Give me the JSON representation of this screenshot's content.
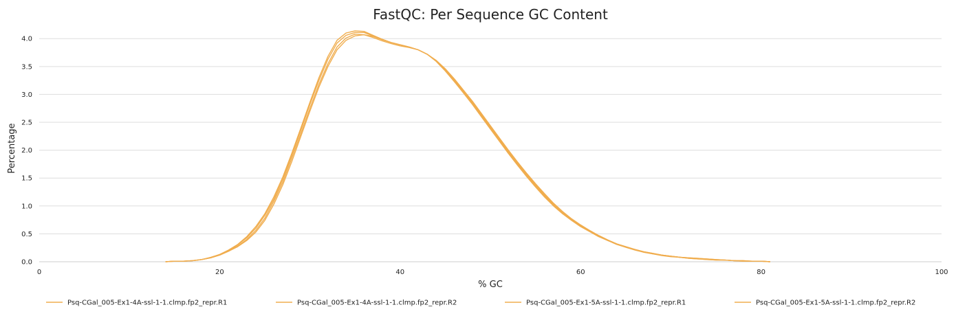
{
  "chart_data": {
    "type": "line",
    "title": "FastQC: Per Sequence GC Content",
    "xlabel": "% GC",
    "ylabel": "Percentage",
    "xlim": [
      0,
      100
    ],
    "ylim": [
      0,
      4.2
    ],
    "xticks": [
      "0",
      "20",
      "40",
      "60",
      "80",
      "100"
    ],
    "yticks": [
      "0.0",
      "0.5",
      "1.0",
      "1.5",
      "2.0",
      "2.5",
      "3.0",
      "3.5",
      "4.0"
    ],
    "grid": "horizontal",
    "legend_position": "bottom",
    "x": [
      14,
      15,
      16,
      17,
      18,
      19,
      20,
      21,
      22,
      23,
      24,
      25,
      26,
      27,
      28,
      29,
      30,
      31,
      32,
      33,
      34,
      35,
      36,
      37,
      38,
      39,
      40,
      41,
      42,
      43,
      44,
      45,
      46,
      47,
      48,
      49,
      50,
      51,
      52,
      53,
      54,
      55,
      56,
      57,
      58,
      59,
      60,
      61,
      62,
      63,
      64,
      65,
      66,
      67,
      68,
      69,
      70,
      71,
      72,
      73,
      74,
      75,
      76,
      77,
      78,
      79,
      80,
      81
    ],
    "series": [
      {
        "name": "Psq-CGal_005-Ex1-4A-ssl-1-1.clmp.fp2_repr.R1",
        "color": "#f0ad4e",
        "values": [
          0.0,
          0.01,
          0.01,
          0.02,
          0.04,
          0.07,
          0.12,
          0.19,
          0.28,
          0.4,
          0.56,
          0.78,
          1.08,
          1.43,
          1.86,
          2.3,
          2.75,
          3.18,
          3.55,
          3.85,
          4.01,
          4.08,
          4.07,
          4.02,
          3.96,
          3.91,
          3.87,
          3.84,
          3.8,
          3.72,
          3.6,
          3.44,
          3.26,
          3.06,
          2.86,
          2.64,
          2.42,
          2.2,
          1.98,
          1.77,
          1.57,
          1.38,
          1.2,
          1.03,
          0.88,
          0.76,
          0.65,
          0.56,
          0.47,
          0.39,
          0.32,
          0.27,
          0.22,
          0.18,
          0.15,
          0.12,
          0.1,
          0.08,
          0.07,
          0.06,
          0.05,
          0.04,
          0.03,
          0.02,
          0.02,
          0.01,
          0.01,
          0.0
        ]
      },
      {
        "name": "Psq-CGal_005-Ex1-4A-ssl-1-1.clmp.fp2_repr.R2",
        "color": "#f0ad4e",
        "values": [
          0.0,
          0.01,
          0.01,
          0.02,
          0.04,
          0.07,
          0.12,
          0.19,
          0.27,
          0.38,
          0.53,
          0.74,
          1.03,
          1.38,
          1.8,
          2.25,
          2.7,
          3.13,
          3.5,
          3.8,
          3.97,
          4.05,
          4.07,
          4.04,
          3.98,
          3.93,
          3.89,
          3.85,
          3.8,
          3.72,
          3.61,
          3.46,
          3.28,
          3.08,
          2.88,
          2.66,
          2.44,
          2.22,
          2.0,
          1.79,
          1.59,
          1.4,
          1.22,
          1.05,
          0.9,
          0.77,
          0.66,
          0.56,
          0.47,
          0.39,
          0.32,
          0.27,
          0.22,
          0.18,
          0.15,
          0.12,
          0.1,
          0.08,
          0.07,
          0.06,
          0.05,
          0.04,
          0.03,
          0.02,
          0.02,
          0.01,
          0.01,
          0.0
        ]
      },
      {
        "name": "Psq-CGal_005-Ex1-5A-ssl-1-1.clmp.fp2_repr.R1",
        "color": "#f0ad4e",
        "values": [
          0.0,
          0.01,
          0.01,
          0.02,
          0.04,
          0.08,
          0.13,
          0.21,
          0.31,
          0.45,
          0.63,
          0.86,
          1.16,
          1.52,
          1.95,
          2.4,
          2.86,
          3.3,
          3.68,
          3.97,
          4.1,
          4.14,
          4.13,
          4.06,
          3.99,
          3.93,
          3.89,
          3.85,
          3.8,
          3.72,
          3.59,
          3.42,
          3.23,
          3.03,
          2.82,
          2.6,
          2.38,
          2.16,
          1.94,
          1.73,
          1.53,
          1.34,
          1.16,
          1.0,
          0.86,
          0.74,
          0.63,
          0.54,
          0.45,
          0.38,
          0.31,
          0.26,
          0.21,
          0.17,
          0.14,
          0.11,
          0.09,
          0.08,
          0.06,
          0.05,
          0.04,
          0.03,
          0.03,
          0.02,
          0.01,
          0.01,
          0.01,
          0.0
        ]
      },
      {
        "name": "Psq-CGal_005-Ex1-5A-ssl-1-1.clmp.fp2_repr.R2",
        "color": "#f0ad4e",
        "values": [
          0.0,
          0.01,
          0.01,
          0.02,
          0.04,
          0.07,
          0.13,
          0.2,
          0.3,
          0.43,
          0.6,
          0.83,
          1.12,
          1.48,
          1.91,
          2.36,
          2.82,
          3.25,
          3.63,
          3.92,
          4.06,
          4.11,
          4.11,
          4.05,
          3.99,
          3.93,
          3.89,
          3.85,
          3.8,
          3.72,
          3.6,
          3.44,
          3.25,
          3.05,
          2.84,
          2.62,
          2.4,
          2.18,
          1.96,
          1.75,
          1.55,
          1.36,
          1.18,
          1.02,
          0.87,
          0.75,
          0.64,
          0.55,
          0.46,
          0.38,
          0.32,
          0.26,
          0.22,
          0.17,
          0.14,
          0.12,
          0.1,
          0.08,
          0.06,
          0.05,
          0.04,
          0.03,
          0.03,
          0.02,
          0.01,
          0.01,
          0.01,
          0.0
        ]
      }
    ]
  }
}
